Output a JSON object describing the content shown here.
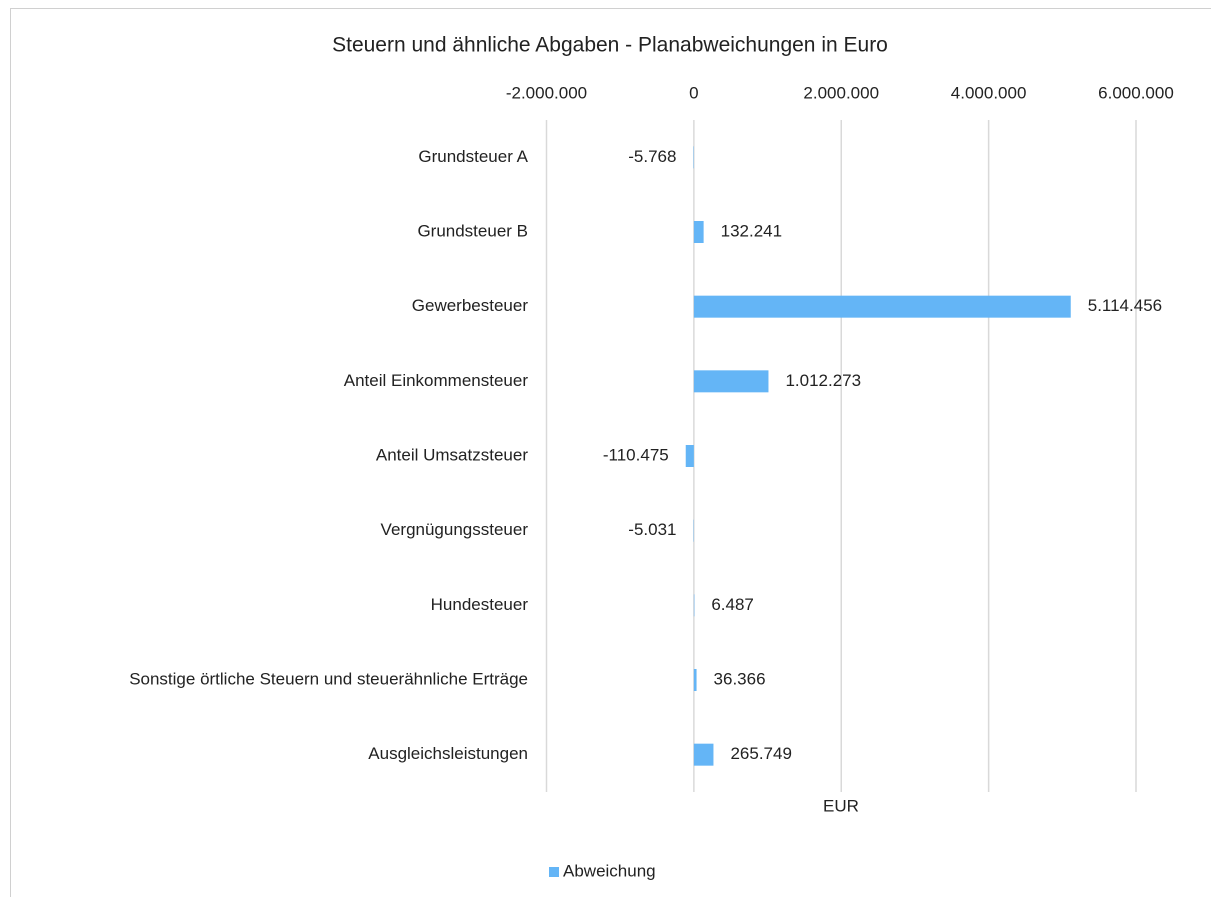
{
  "chart_data": {
    "type": "bar",
    "orientation": "horizontal",
    "title": "Steuern und ähnliche Abgaben - Planabweichungen in Euro",
    "x_label": "EUR",
    "categories": [
      "Grundsteuer A",
      "Grundsteuer B",
      "Gewerbesteuer",
      "Anteil Einkommensteuer",
      "Anteil Umsatzsteuer",
      "Vergnügungssteuer",
      "Hundesteuer",
      "Sonstige örtliche Steuern und steuerähnliche Erträge",
      "Ausgleichsleistungen"
    ],
    "series": [
      {
        "name": "Abweichung",
        "color": "#64b5f6",
        "values": [
          -5768,
          132241,
          5114456,
          1012273,
          -110475,
          -5031,
          6487,
          36366,
          265749
        ],
        "value_labels": [
          "-5.768",
          "132.241",
          "5.114.456",
          "1.012.273",
          "-110.475",
          "-5.031",
          "6.487",
          "36.366",
          "265.749"
        ]
      }
    ],
    "xlim": [
      -2000000,
      6000000
    ],
    "xticks": [
      {
        "value": -2000000,
        "label": "-2.000.000"
      },
      0,
      {
        "value": 2000000,
        "label": "2.000.000"
      },
      {
        "value": 4000000,
        "label": "4.000.000"
      },
      {
        "value": 6000000,
        "label": "6.000.000"
      }
    ],
    "grid": true,
    "legend": "bottom"
  }
}
